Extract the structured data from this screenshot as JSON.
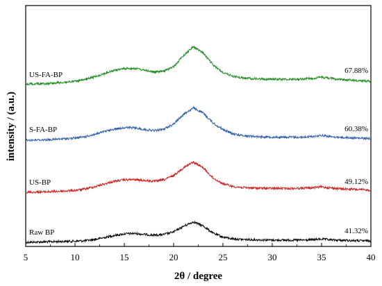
{
  "chart_data": {
    "type": "line",
    "title": "",
    "xlabel": "2θ / degree",
    "ylabel": "intensity / (a.u.)",
    "xlim": [
      5,
      40
    ],
    "xticks": [
      5,
      10,
      15,
      20,
      25,
      30,
      35,
      40
    ],
    "y_tick_labels": false,
    "grid": false,
    "legend": "none",
    "x": [
      5,
      6,
      7,
      8,
      9,
      10,
      11,
      12,
      13,
      14,
      15,
      16,
      17,
      18,
      19,
      20,
      21,
      22,
      23,
      24,
      25,
      26,
      27,
      28,
      29,
      30,
      31,
      32,
      33,
      34,
      35,
      36,
      37,
      38,
      39,
      40
    ],
    "series": [
      {
        "name": "Raw BP",
        "annotation": "41.32%",
        "color": "#000000",
        "values": [
          0.0,
          0.5,
          1.0,
          1.5,
          2.0,
          2.5,
          3.5,
          6.5,
          11.0,
          16.0,
          19.5,
          20.5,
          18.5,
          16.5,
          18.0,
          24.0,
          37.0,
          47.5,
          38.0,
          21.0,
          12.0,
          8.0,
          6.5,
          6.0,
          5.5,
          5.0,
          5.0,
          5.0,
          5.0,
          5.5,
          7.5,
          5.5,
          4.5,
          4.0,
          3.5,
          3.0
        ]
      },
      {
        "name": "US-BP",
        "annotation": "49.12%",
        "color": "#c8201e",
        "values": [
          0.0,
          0.5,
          1.0,
          2.0,
          3.0,
          4.5,
          7.5,
          13.0,
          19.5,
          25.5,
          29.0,
          29.5,
          27.5,
          25.5,
          29.0,
          39.0,
          57.0,
          70.0,
          57.0,
          33.0,
          20.0,
          13.5,
          11.0,
          10.0,
          9.5,
          9.0,
          9.0,
          9.0,
          9.5,
          10.5,
          12.5,
          10.0,
          8.0,
          7.0,
          6.0,
          5.0
        ]
      },
      {
        "name": "S-FA-BP",
        "annotation": "60.38%",
        "color": "#2e5fa8",
        "values": [
          0.0,
          0.5,
          1.0,
          2.0,
          3.5,
          5.0,
          8.0,
          13.5,
          20.0,
          26.0,
          29.5,
          29.0,
          25.0,
          22.5,
          25.5,
          38.0,
          60.0,
          75.0,
          63.0,
          40.0,
          25.0,
          15.0,
          11.0,
          9.0,
          8.0,
          7.5,
          7.0,
          7.0,
          7.0,
          8.5,
          11.5,
          8.0,
          6.5,
          5.5,
          4.5,
          4.0
        ]
      },
      {
        "name": "US-FA-BP",
        "annotation": "67.88%",
        "color": "#1e8a1e",
        "values": [
          0.0,
          0.5,
          1.0,
          2.5,
          4.0,
          6.0,
          10.0,
          17.0,
          24.5,
          31.5,
          36.0,
          36.5,
          32.5,
          28.0,
          29.5,
          40.5,
          66.0,
          87.0,
          72.0,
          44.0,
          27.0,
          18.0,
          14.0,
          12.5,
          11.5,
          11.0,
          11.0,
          11.0,
          11.5,
          13.0,
          16.0,
          13.0,
          10.5,
          9.0,
          7.5,
          6.5
        ]
      }
    ]
  }
}
